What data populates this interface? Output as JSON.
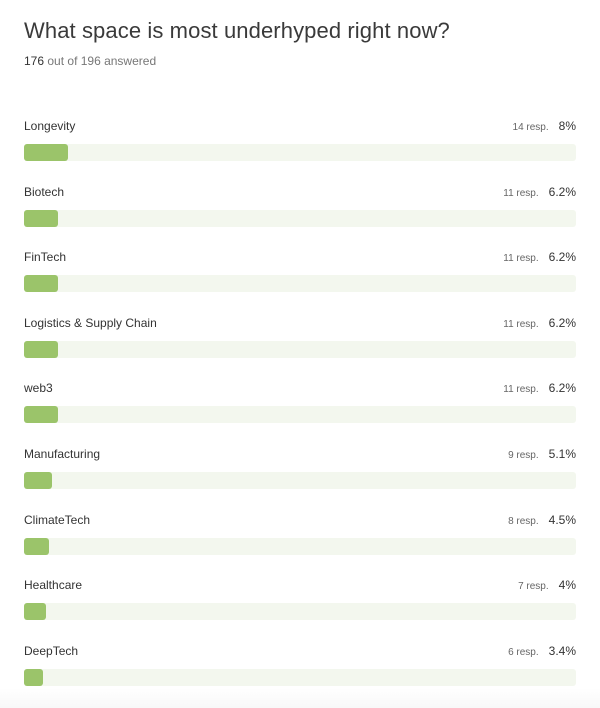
{
  "survey": {
    "question": "What space is most underhyped right now?",
    "answered_count": "176",
    "answered_suffix": "out of 196 answered"
  },
  "colors": {
    "bar_fill": "#9bc46a",
    "bar_track": "#f3f7ee"
  },
  "chart_data": {
    "type": "bar",
    "categories": [
      "Longevity",
      "Biotech",
      "FinTech",
      "Logistics & Supply Chain",
      "web3",
      "Manufacturing",
      "ClimateTech",
      "Healthcare",
      "DeepTech"
    ],
    "responses": [
      "14 resp.",
      "11 resp.",
      "11 resp.",
      "11 resp.",
      "11 resp.",
      "9 resp.",
      "8 resp.",
      "7 resp.",
      "6 resp."
    ],
    "percent_labels": [
      "8%",
      "6.2%",
      "6.2%",
      "6.2%",
      "6.2%",
      "5.1%",
      "4.5%",
      "4%",
      "3.4%"
    ],
    "values": [
      8,
      6.2,
      6.2,
      6.2,
      6.2,
      5.1,
      4.5,
      4,
      3.4
    ],
    "xlim": [
      0,
      100
    ]
  }
}
